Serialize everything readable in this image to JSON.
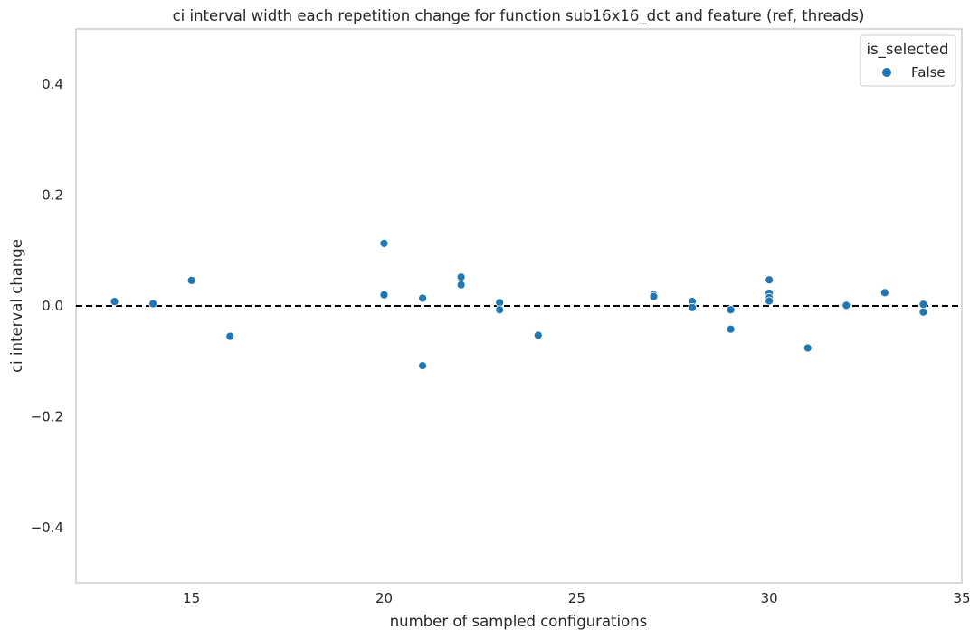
{
  "chart_data": {
    "type": "scatter",
    "title": "ci interval width each repetition change for function sub16x16_dct and feature (ref, threads)",
    "xlabel": "number of sampled configurations",
    "ylabel": "ci interval change",
    "xlim": [
      12,
      35
    ],
    "ylim": [
      -0.5,
      0.5
    ],
    "x_ticks": [
      15,
      20,
      25,
      30,
      35
    ],
    "y_ticks": [
      -0.4,
      -0.2,
      0.0,
      0.2,
      0.4
    ],
    "x_tick_labels": [
      "15",
      "20",
      "25",
      "30",
      "35"
    ],
    "y_tick_labels": [
      "−0.4",
      "−0.2",
      "0.0",
      "0.2",
      "0.4"
    ],
    "grid": false,
    "reference_line": {
      "y": 0.0,
      "style": "dashed",
      "color": "#000000"
    },
    "legend": {
      "title": "is_selected",
      "placement": "top-right"
    },
    "series": [
      {
        "name": "False",
        "color": "#1f77b4",
        "points": [
          {
            "x": 13,
            "y": 0.008
          },
          {
            "x": 14,
            "y": 0.004
          },
          {
            "x": 15,
            "y": 0.046
          },
          {
            "x": 16,
            "y": -0.055
          },
          {
            "x": 20,
            "y": 0.113
          },
          {
            "x": 20,
            "y": 0.02
          },
          {
            "x": 21,
            "y": 0.014
          },
          {
            "x": 21,
            "y": -0.108
          },
          {
            "x": 22,
            "y": 0.052
          },
          {
            "x": 22,
            "y": 0.038
          },
          {
            "x": 23,
            "y": 0.006
          },
          {
            "x": 23,
            "y": -0.007
          },
          {
            "x": 24,
            "y": -0.053
          },
          {
            "x": 27,
            "y": 0.02
          },
          {
            "x": 27,
            "y": 0.017
          },
          {
            "x": 28,
            "y": 0.008
          },
          {
            "x": 28,
            "y": -0.003
          },
          {
            "x": 29,
            "y": -0.007
          },
          {
            "x": 29,
            "y": -0.042
          },
          {
            "x": 30,
            "y": 0.047
          },
          {
            "x": 30,
            "y": 0.023
          },
          {
            "x": 30,
            "y": 0.015
          },
          {
            "x": 30,
            "y": 0.009
          },
          {
            "x": 31,
            "y": -0.076
          },
          {
            "x": 32,
            "y": 0.001
          },
          {
            "x": 33,
            "y": 0.024
          },
          {
            "x": 34,
            "y": 0.003
          },
          {
            "x": 34,
            "y": -0.011
          }
        ]
      }
    ]
  }
}
